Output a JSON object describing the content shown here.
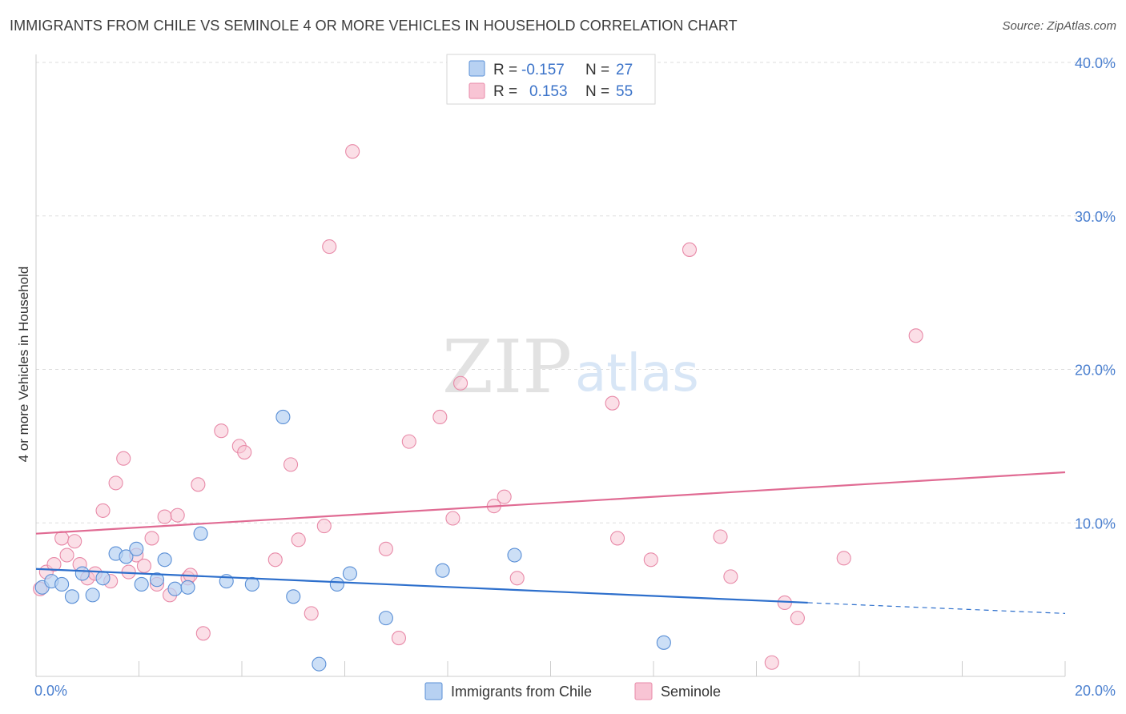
{
  "title": "IMMIGRANTS FROM CHILE VS SEMINOLE 4 OR MORE VEHICLES IN HOUSEHOLD CORRELATION CHART",
  "source": "Source: ZipAtlas.com",
  "watermark": {
    "zip": "ZIP",
    "atlas": "atlas"
  },
  "legend": {
    "chile": {
      "r_label": "R =",
      "r_value": "-0.157",
      "n_label": "N =",
      "n_value": "27"
    },
    "seminole": {
      "r_label": "R =",
      "r_value": "0.153",
      "n_label": "N =",
      "n_value": "55"
    }
  },
  "bottom_legend": {
    "chile": "Immigrants from Chile",
    "seminole": "Seminole"
  },
  "colors": {
    "chile_fill": "#b7d1f2",
    "chile_stroke": "#5a8fd6",
    "chile_line": "#2d6fcc",
    "seminole_fill": "#f8c4d4",
    "seminole_stroke": "#e88aa8",
    "seminole_line": "#e06b93",
    "grid": "#dddddd",
    "tick_label": "#4a7fcf"
  },
  "chart_data": {
    "type": "scatter",
    "title": "IMMIGRANTS FROM CHILE VS SEMINOLE 4 OR MORE VEHICLES IN HOUSEHOLD CORRELATION CHART",
    "xlabel": "",
    "ylabel": "4 or more Vehicles in Household",
    "xlim": [
      0,
      20
    ],
    "ylim": [
      0,
      40
    ],
    "x_tick_labels": [
      "0.0%",
      "20.0%"
    ],
    "y_ticks": [
      10,
      20,
      30,
      40
    ],
    "y_tick_labels": [
      "10.0%",
      "20.0%",
      "30.0%",
      "40.0%"
    ],
    "grid": true,
    "legend_position": "top-center",
    "series": [
      {
        "name": "Immigrants from Chile",
        "color": "#b7d1f2",
        "points": [
          [
            0.12,
            5.8
          ],
          [
            0.3,
            6.2
          ],
          [
            0.5,
            6.0
          ],
          [
            0.7,
            5.2
          ],
          [
            0.9,
            6.7
          ],
          [
            1.1,
            5.3
          ],
          [
            1.3,
            6.4
          ],
          [
            1.55,
            8.0
          ],
          [
            1.75,
            7.8
          ],
          [
            1.95,
            8.3
          ],
          [
            2.05,
            6.0
          ],
          [
            2.35,
            6.3
          ],
          [
            2.5,
            7.6
          ],
          [
            2.7,
            5.7
          ],
          [
            2.95,
            5.8
          ],
          [
            3.2,
            9.3
          ],
          [
            3.7,
            6.2
          ],
          [
            4.2,
            6.0
          ],
          [
            4.8,
            16.9
          ],
          [
            5.0,
            5.2
          ],
          [
            5.5,
            0.8
          ],
          [
            5.85,
            6.0
          ],
          [
            6.1,
            6.7
          ],
          [
            6.8,
            3.8
          ],
          [
            7.9,
            6.9
          ],
          [
            9.3,
            7.9
          ],
          [
            12.2,
            2.2
          ]
        ],
        "trend": {
          "x": [
            0.0,
            15.0
          ],
          "y": [
            7.0,
            4.8
          ],
          "dashed_to": [
            20.0,
            4.1
          ]
        }
      },
      {
        "name": "Seminole",
        "color": "#f8c4d4",
        "points": [
          [
            0.08,
            5.7
          ],
          [
            0.2,
            6.8
          ],
          [
            0.35,
            7.3
          ],
          [
            0.5,
            9.0
          ],
          [
            0.6,
            7.9
          ],
          [
            0.75,
            8.8
          ],
          [
            0.85,
            7.3
          ],
          [
            1.0,
            6.4
          ],
          [
            1.15,
            6.7
          ],
          [
            1.3,
            10.8
          ],
          [
            1.45,
            6.2
          ],
          [
            1.55,
            12.6
          ],
          [
            1.7,
            14.2
          ],
          [
            1.8,
            6.8
          ],
          [
            1.95,
            7.9
          ],
          [
            2.1,
            7.2
          ],
          [
            2.25,
            9.0
          ],
          [
            2.35,
            6.0
          ],
          [
            2.5,
            10.4
          ],
          [
            2.6,
            5.3
          ],
          [
            2.75,
            10.5
          ],
          [
            2.95,
            6.4
          ],
          [
            3.0,
            6.6
          ],
          [
            3.15,
            12.5
          ],
          [
            3.25,
            2.8
          ],
          [
            3.6,
            16.0
          ],
          [
            3.95,
            15.0
          ],
          [
            4.05,
            14.6
          ],
          [
            4.65,
            7.6
          ],
          [
            4.95,
            13.8
          ],
          [
            5.1,
            8.9
          ],
          [
            5.35,
            4.1
          ],
          [
            5.6,
            9.8
          ],
          [
            5.7,
            28.0
          ],
          [
            6.15,
            34.2
          ],
          [
            6.8,
            8.3
          ],
          [
            7.05,
            2.5
          ],
          [
            7.25,
            15.3
          ],
          [
            7.85,
            16.9
          ],
          [
            8.1,
            10.3
          ],
          [
            8.25,
            19.1
          ],
          [
            8.9,
            11.1
          ],
          [
            9.1,
            11.7
          ],
          [
            9.35,
            6.4
          ],
          [
            11.2,
            17.8
          ],
          [
            11.3,
            9.0
          ],
          [
            11.95,
            7.6
          ],
          [
            12.7,
            27.8
          ],
          [
            13.3,
            9.1
          ],
          [
            13.5,
            6.5
          ],
          [
            14.3,
            0.9
          ],
          [
            14.55,
            4.8
          ],
          [
            14.8,
            3.8
          ],
          [
            15.7,
            7.7
          ],
          [
            17.1,
            22.2
          ]
        ],
        "trend": {
          "x": [
            0.0,
            20.0
          ],
          "y": [
            9.3,
            13.3
          ]
        }
      }
    ]
  }
}
